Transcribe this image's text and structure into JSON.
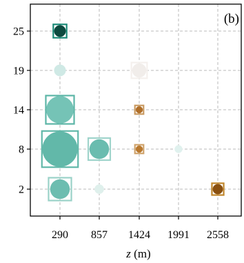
{
  "chart_data": {
    "type": "scatter",
    "panel_label": "(b)",
    "xlabel_var": "z",
    "xlabel_unit": " (m)",
    "ylabel": "",
    "x_categories": [
      "290",
      "857",
      "1424",
      "1991",
      "2558"
    ],
    "y_categories": [
      "2",
      "8",
      "14",
      "19",
      "25"
    ],
    "grid": true,
    "marker_style": "circle with surrounding square; marker size encodes magnitude; color encodes sign/value",
    "points": [
      {
        "x": "290",
        "y": "25",
        "circle_size": 0.3,
        "square_size": 0.34,
        "circle_color": "#0d4a3f",
        "square_color": "#1a8a77"
      },
      {
        "x": "290",
        "y": "19",
        "circle_size": 0.3,
        "square_size": 0.0,
        "circle_color": "#cfe9e5",
        "square_color": "#cfe9e5"
      },
      {
        "x": "290",
        "y": "14",
        "circle_size": 0.7,
        "square_size": 0.72,
        "circle_color": "#75c3b6",
        "square_color": "#5bb5a6"
      },
      {
        "x": "290",
        "y": "8",
        "circle_size": 0.9,
        "square_size": 0.92,
        "circle_color": "#62b8a9",
        "square_color": "#62b8a9"
      },
      {
        "x": "290",
        "y": "2",
        "circle_size": 0.5,
        "square_size": 0.58,
        "circle_color": "#6dbdb0",
        "square_color": "#9ad2c8"
      },
      {
        "x": "857",
        "y": "8",
        "circle_size": 0.5,
        "square_size": 0.56,
        "circle_color": "#6abcaf",
        "square_color": "#9fd4cb"
      },
      {
        "x": "857",
        "y": "2",
        "circle_size": 0.24,
        "square_size": 0.0,
        "circle_color": "#dff0ec",
        "square_color": "#dff0ec"
      },
      {
        "x": "1424",
        "y": "19",
        "circle_size": 0.36,
        "square_size": 0.4,
        "circle_color": "#f1edea",
        "square_color": "#f4f0ed"
      },
      {
        "x": "1424",
        "y": "14",
        "circle_size": 0.18,
        "square_size": 0.22,
        "circle_color": "#b06f2a",
        "square_color": "#c99a62"
      },
      {
        "x": "1424",
        "y": "8",
        "circle_size": 0.18,
        "square_size": 0.22,
        "circle_color": "#b9792f",
        "square_color": "#cfa36b"
      },
      {
        "x": "1991",
        "y": "8",
        "circle_size": 0.2,
        "square_size": 0.0,
        "circle_color": "#e0f1ee",
        "square_color": "#e0f1ee"
      },
      {
        "x": "2558",
        "y": "2",
        "circle_size": 0.26,
        "square_size": 0.3,
        "circle_color": "#8a5010",
        "square_color": "#c0852a"
      }
    ]
  }
}
